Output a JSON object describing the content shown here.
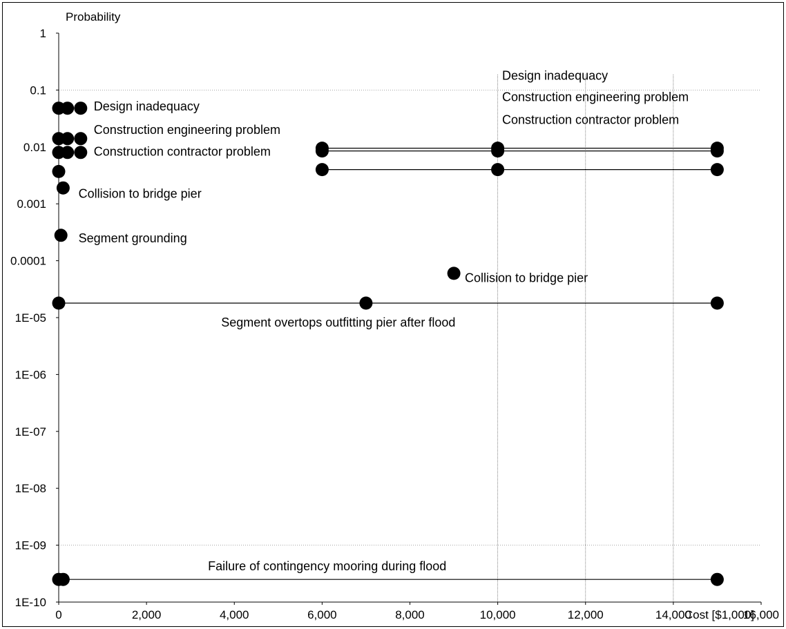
{
  "chart_data": {
    "type": "scatter",
    "title": "",
    "xlabel": "Cost [$1,000]",
    "ylabel": "Probability",
    "xlim": [
      0,
      16000
    ],
    "ylim": [
      1e-10,
      1
    ],
    "yscale": "log",
    "grid": false,
    "x_ticks": [
      {
        "value": 0,
        "label": "0"
      },
      {
        "value": 2000,
        "label": "2,000"
      },
      {
        "value": 4000,
        "label": "4,000"
      },
      {
        "value": 6000,
        "label": "6,000"
      },
      {
        "value": 8000,
        "label": "8,000"
      },
      {
        "value": 10000,
        "label": "10,000"
      },
      {
        "value": 12000,
        "label": "12,000"
      },
      {
        "value": 14000,
        "label": "14,000"
      },
      {
        "value": 16000,
        "label": "16,000"
      }
    ],
    "y_ticks": [
      {
        "value": 1,
        "label": "1"
      },
      {
        "value": 0.1,
        "label": "0.1"
      },
      {
        "value": 0.01,
        "label": "0.01"
      },
      {
        "value": 0.001,
        "label": "0.001"
      },
      {
        "value": 0.0001,
        "label": "0.0001"
      },
      {
        "value": 1e-05,
        "label": "1E-05"
      },
      {
        "value": 1e-06,
        "label": "1E-06"
      },
      {
        "value": 1e-07,
        "label": "1E-07"
      },
      {
        "value": 1e-08,
        "label": "1E-08"
      },
      {
        "value": 1e-09,
        "label": "1E-09"
      },
      {
        "value": 1e-10,
        "label": "1E-10"
      }
    ],
    "lines": [
      {
        "points": [
          [
            6000,
            0.0095
          ],
          [
            15000,
            0.0095
          ]
        ]
      },
      {
        "points": [
          [
            6000,
            0.0085
          ],
          [
            15000,
            0.0085
          ]
        ]
      },
      {
        "points": [
          [
            6000,
            0.004
          ],
          [
            15000,
            0.004
          ]
        ]
      },
      {
        "points": [
          [
            0,
            1.8e-05
          ],
          [
            15000,
            1.8e-05
          ]
        ]
      },
      {
        "points": [
          [
            0,
            2.5e-10
          ],
          [
            15000,
            2.5e-10
          ]
        ]
      }
    ],
    "points": [
      [
        0,
        0.048
      ],
      [
        200,
        0.048
      ],
      [
        500,
        0.048
      ],
      [
        0,
        0.014
      ],
      [
        200,
        0.014
      ],
      [
        500,
        0.014
      ],
      [
        0,
        0.008
      ],
      [
        200,
        0.008
      ],
      [
        500,
        0.008
      ],
      [
        0,
        0.0037
      ],
      [
        100,
        0.0019
      ],
      [
        50,
        0.00028
      ],
      [
        6000,
        0.0095
      ],
      [
        6000,
        0.0085
      ],
      [
        6000,
        0.004
      ],
      [
        10000,
        0.0095
      ],
      [
        10000,
        0.0085
      ],
      [
        10000,
        0.004
      ],
      [
        15000,
        0.0095
      ],
      [
        15000,
        0.0085
      ],
      [
        15000,
        0.004
      ],
      [
        9000,
        6e-05
      ],
      [
        0,
        1.8e-05
      ],
      [
        7000,
        1.8e-05
      ],
      [
        15000,
        1.8e-05
      ],
      [
        0,
        2.5e-10
      ],
      [
        100,
        2.5e-10
      ],
      [
        15000,
        2.5e-10
      ]
    ],
    "annotations": [
      {
        "text": "Design inadequacy",
        "x": 800,
        "y": 0.052
      },
      {
        "text": "Construction engineering problem",
        "x": 800,
        "y": 0.02
      },
      {
        "text": "Construction contractor problem",
        "x": 800,
        "y": 0.0083
      },
      {
        "text": "Collision to bridge pier",
        "x": 450,
        "y": 0.0015
      },
      {
        "text": "Segment grounding",
        "x": 450,
        "y": 0.00025
      },
      {
        "text": "Design inadequacy",
        "x": 10100,
        "y": 0.18
      },
      {
        "text": "Construction engineering problem",
        "x": 10100,
        "y": 0.075
      },
      {
        "text": "Construction contractor problem",
        "x": 10100,
        "y": 0.03
      },
      {
        "text": "Collision to bridge pier",
        "x": 9250,
        "y": 5e-05
      },
      {
        "text": "Segment overtops outfitting pier after flood",
        "x": 3700,
        "y": 8.2e-06
      },
      {
        "text": "Failure of contingency mooring during flood",
        "x": 3400,
        "y": 4.3e-10
      }
    ]
  }
}
